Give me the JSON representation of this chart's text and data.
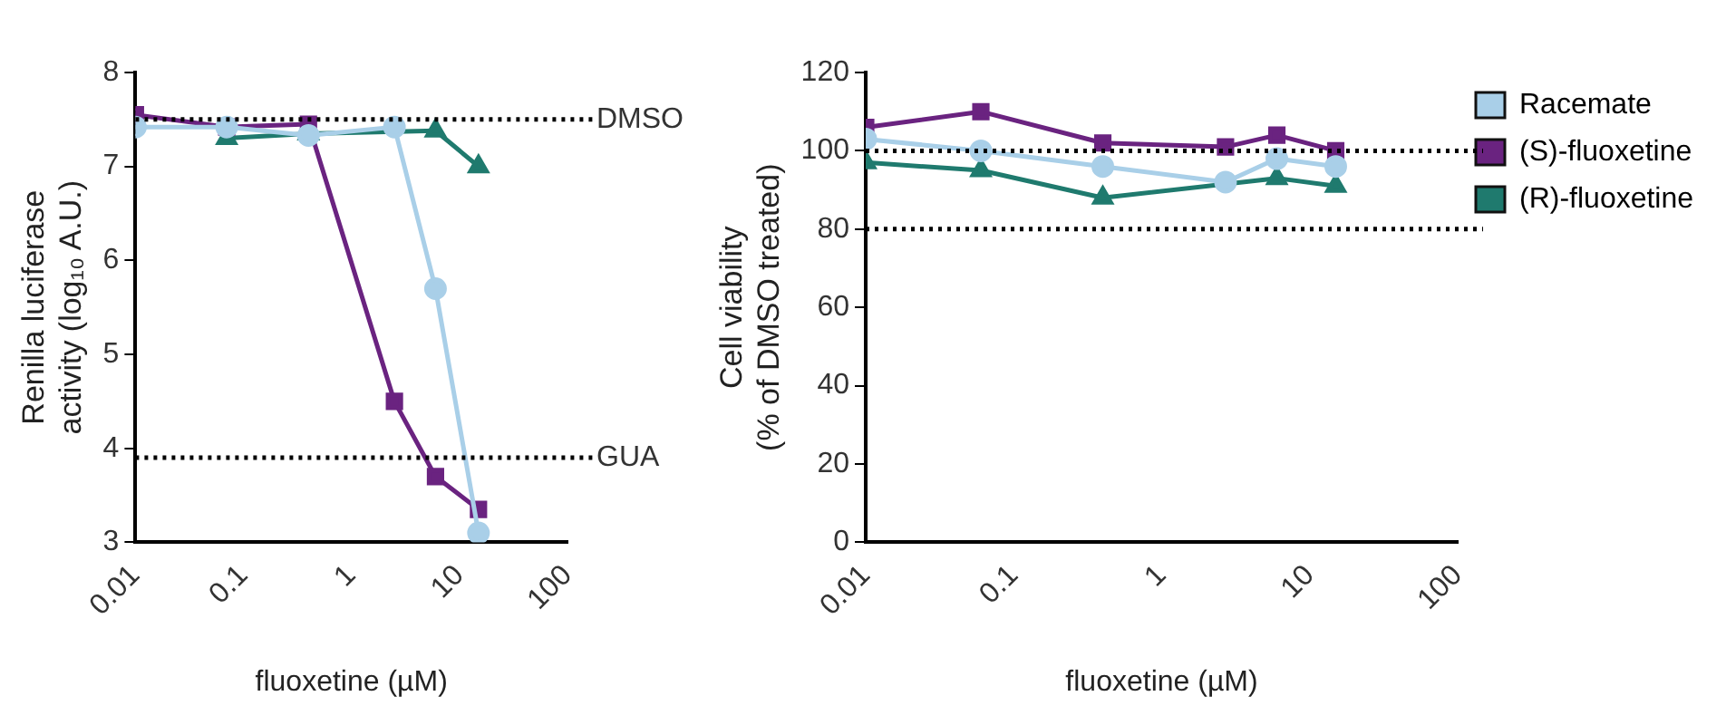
{
  "chart_data": [
    {
      "type": "line",
      "xlabel": "fluoxetine (µM)",
      "ylabel": "Renilla luciferase\nactivity (log₁₀ A.U.)",
      "log": "x",
      "xlim": [
        0.01,
        100
      ],
      "xticks": [
        0.01,
        0.1,
        1,
        10,
        100
      ],
      "ylim": [
        3,
        8
      ],
      "yticks": [
        3,
        4,
        5,
        6,
        7,
        8
      ],
      "grid": false,
      "legend": false,
      "line_style": "solid",
      "ref_lines": [
        {
          "axis": "y",
          "value": 7.5,
          "label": "DMSO",
          "color": "#000000",
          "line_style": "dotted"
        },
        {
          "axis": "y",
          "value": 3.9,
          "label": "GUA",
          "color": "#000000",
          "line_style": "dotted"
        }
      ],
      "series": [
        {
          "color": "#a9cfe8",
          "marker": "circle",
          "x": [
            0.01,
            0.07,
            0.4,
            2.5,
            6,
            15
          ],
          "values": [
            7.42,
            7.42,
            7.33,
            7.42,
            5.7,
            3.1
          ]
        },
        {
          "color": "#6a2380",
          "marker": "square",
          "x": [
            0.01,
            0.07,
            0.4,
            2.5,
            6,
            15
          ],
          "values": [
            7.55,
            7.42,
            7.45,
            4.5,
            3.7,
            3.35
          ]
        },
        {
          "color": "#1f7a6e",
          "marker": "triangle",
          "x": [
            0.07,
            0.4,
            2.5,
            6,
            15
          ],
          "values": [
            7.3,
            7.35,
            null,
            7.38,
            7.0
          ]
        }
      ]
    },
    {
      "type": "line",
      "xlabel": "fluoxetine (µM)",
      "ylabel": "Cell viability\n(% of DMSO treated)",
      "log": "x",
      "xlim": [
        0.01,
        100
      ],
      "xticks": [
        0.01,
        0.1,
        1,
        10,
        100
      ],
      "ylim": [
        0,
        120
      ],
      "yticks": [
        0,
        20,
        40,
        60,
        80,
        100,
        120
      ],
      "grid": false,
      "legend": "right",
      "line_style": "solid",
      "ref_lines": [
        {
          "axis": "y",
          "value": 100,
          "color": "#000000",
          "line_style": "dotted"
        },
        {
          "axis": "y",
          "value": 80,
          "color": "#000000",
          "line_style": "dotted"
        }
      ],
      "series": [
        {
          "name": "Racemate",
          "color": "#a9cfe8",
          "marker": "circle",
          "x": [
            0.01,
            0.06,
            0.4,
            2.7,
            6,
            15
          ],
          "values": [
            103,
            100,
            96,
            92,
            98,
            96
          ]
        },
        {
          "name": "(S)-fluoxetine",
          "color": "#6a2380",
          "marker": "square",
          "x": [
            0.01,
            0.06,
            0.4,
            2.7,
            6,
            15
          ],
          "values": [
            106,
            110,
            102,
            101,
            104,
            100
          ]
        },
        {
          "name": "(R)-fluoxetine",
          "color": "#1f7a6e",
          "marker": "triangle",
          "x": [
            0.01,
            0.06,
            0.4,
            2.7,
            6,
            15
          ],
          "values": [
            97,
            95,
            88,
            null,
            93,
            91
          ]
        }
      ]
    }
  ]
}
